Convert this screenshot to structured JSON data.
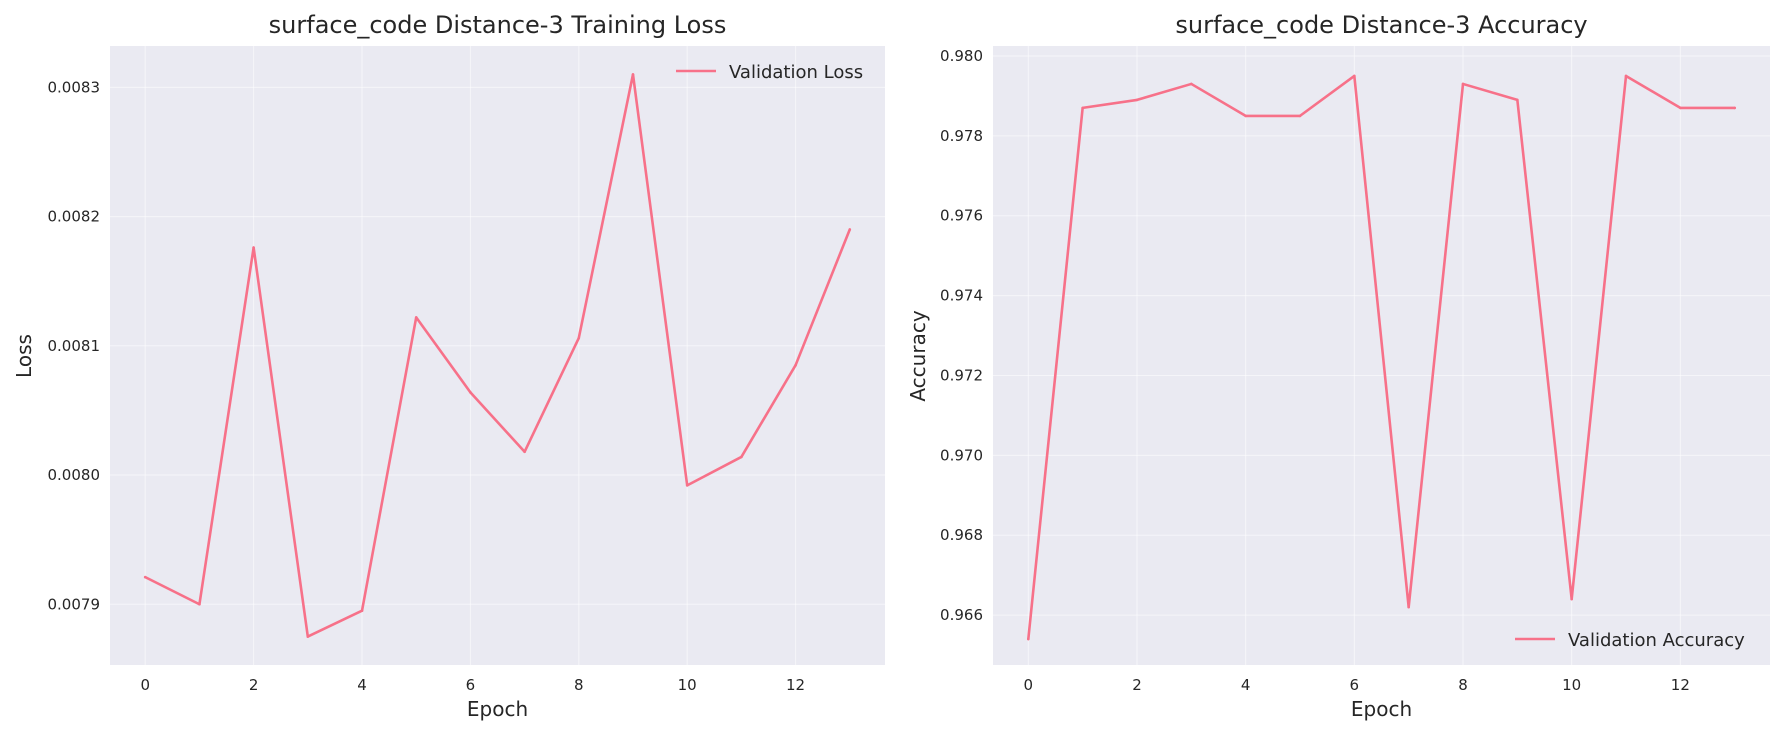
{
  "figure": {
    "line_color": "#f77189",
    "background_color": "#eaeaf2",
    "grid_color": "#ffffff"
  },
  "chart_data": [
    {
      "type": "line",
      "title": "surface_code Distance-3 Training Loss",
      "xlabel": "Epoch",
      "ylabel": "Loss",
      "xlim": [
        -0.65,
        13.65
      ],
      "ylim": [
        0.007853,
        0.008332
      ],
      "xticks": [
        0,
        2,
        4,
        6,
        8,
        10,
        12
      ],
      "xtick_labels": [
        "0",
        "2",
        "4",
        "6",
        "8",
        "10",
        "12"
      ],
      "yticks": [
        0.0079,
        0.008,
        0.0081,
        0.0082,
        0.0083
      ],
      "ytick_labels": [
        "0.0079",
        "0.0080",
        "0.0081",
        "0.0082",
        "0.0083"
      ],
      "grid": true,
      "legend_position": "upper right",
      "series": [
        {
          "name": "Validation Loss",
          "x": [
            0,
            1,
            2,
            3,
            4,
            5,
            6,
            7,
            8,
            9,
            10,
            11,
            12,
            13
          ],
          "values": [
            0.007921,
            0.0079,
            0.008176,
            0.007875,
            0.007895,
            0.008122,
            0.008064,
            0.008018,
            0.008106,
            0.00831,
            0.007992,
            0.008014,
            0.008085,
            0.00819
          ]
        }
      ]
    },
    {
      "type": "line",
      "title": "surface_code Distance-3 Accuracy",
      "xlabel": "Epoch",
      "ylabel": "Accuracy",
      "xlim": [
        -0.65,
        13.65
      ],
      "ylim": [
        0.96475,
        0.98025
      ],
      "xticks": [
        0,
        2,
        4,
        6,
        8,
        10,
        12
      ],
      "xtick_labels": [
        "0",
        "2",
        "4",
        "6",
        "8",
        "10",
        "12"
      ],
      "yticks": [
        0.966,
        0.968,
        0.97,
        0.972,
        0.974,
        0.976,
        0.978,
        0.98
      ],
      "ytick_labels": [
        "0.966",
        "0.968",
        "0.970",
        "0.972",
        "0.974",
        "0.976",
        "0.978",
        "0.980"
      ],
      "grid": true,
      "legend_position": "lower right",
      "series": [
        {
          "name": "Validation Accuracy",
          "x": [
            0,
            1,
            2,
            3,
            4,
            5,
            6,
            7,
            8,
            9,
            10,
            11,
            12,
            13
          ],
          "values": [
            0.9654,
            0.9787,
            0.9789,
            0.9793,
            0.9785,
            0.9785,
            0.9795,
            0.9662,
            0.9793,
            0.9789,
            0.9664,
            0.9795,
            0.9787,
            0.9787
          ]
        }
      ]
    }
  ]
}
